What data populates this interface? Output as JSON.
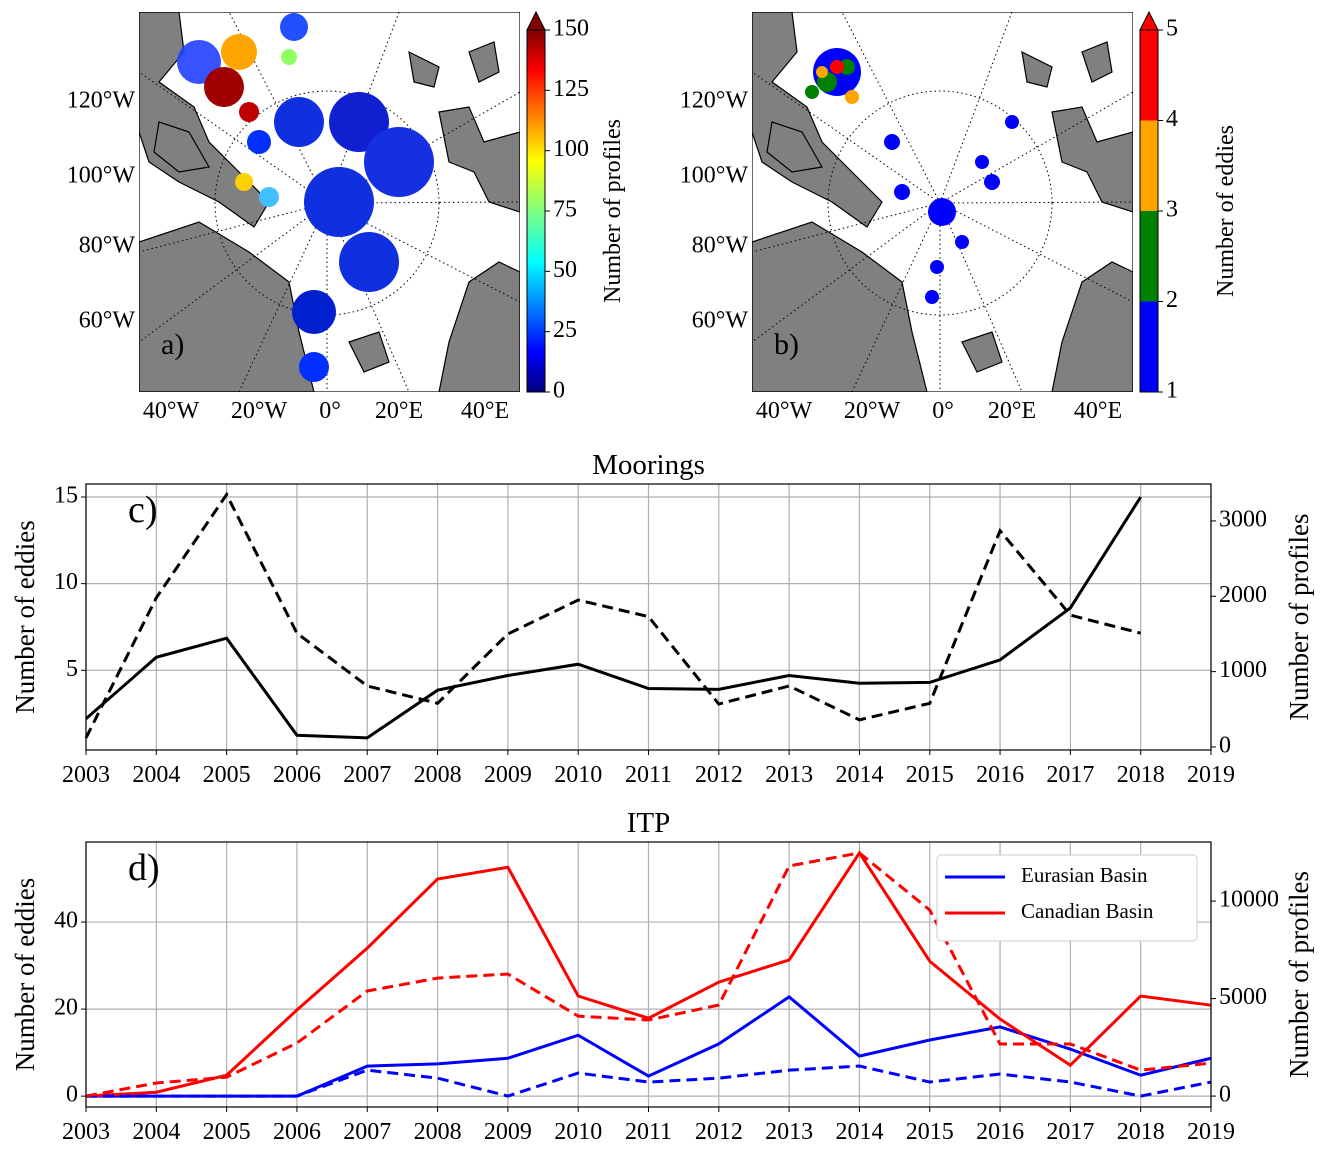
{
  "maps": [
    {
      "label": "a)",
      "lat_labels": [
        "120°W",
        "100°W",
        "80°W",
        "60°W"
      ],
      "lon_labels": [
        "40°W",
        "20°W",
        "0°",
        "20°E",
        "40°E"
      ],
      "colorbar": {
        "label": "Number of profiles",
        "lim": [
          0,
          150
        ],
        "ticks": [
          0,
          25,
          50,
          75,
          100,
          125,
          150
        ],
        "colormap": "jet",
        "extend": "max"
      }
    },
    {
      "label": "b)",
      "lat_labels": [
        "120°W",
        "100°W",
        "80°W",
        "60°W"
      ],
      "lon_labels": [
        "40°W",
        "20°W",
        "0°",
        "20°E",
        "40°E"
      ],
      "colorbar": {
        "label": "Number of eddies",
        "lim": [
          1,
          5
        ],
        "ticks": [
          1,
          2,
          3,
          4,
          5
        ],
        "colors": [
          "#0000ff",
          "#008000",
          "#ffa500",
          "#ff0000"
        ],
        "extend": "max"
      }
    }
  ],
  "chart_data": [
    {
      "type": "line",
      "title": "Moorings",
      "panel_label": "c)",
      "x": [
        2003,
        2004,
        2005,
        2006,
        2007,
        2008,
        2009,
        2010,
        2011,
        2012,
        2013,
        2014,
        2015,
        2016,
        2017,
        2018
      ],
      "xlim": [
        2003,
        2019
      ],
      "xticks": [
        2003,
        2004,
        2005,
        2006,
        2007,
        2008,
        2009,
        2010,
        2011,
        2012,
        2013,
        2014,
        2015,
        2016,
        2017,
        2018,
        2019
      ],
      "ylabel": "Number of eddies",
      "ylim": [
        0.4,
        15.75
      ],
      "yticks": [
        5,
        10,
        15
      ],
      "y2label": "Number of profiles",
      "y2lim": [
        -40,
        3490
      ],
      "y2ticks": [
        0,
        1000,
        2000,
        3000
      ],
      "grid": true,
      "series": [
        {
          "color": "#000000",
          "linestyle": "solid",
          "values": [
            2.2,
            5.75,
            6.85,
            1.25,
            1.1,
            3.85,
            4.7,
            5.35,
            3.95,
            3.9,
            4.7,
            4.25,
            4.3,
            5.6,
            8.6,
            15
          ]
        },
        {
          "color": "#000000",
          "linestyle": "dashed",
          "axis": "y2",
          "values": [
            120,
            1980,
            3350,
            1510,
            810,
            580,
            1500,
            1950,
            1730,
            570,
            810,
            360,
            580,
            2870,
            1750,
            1510
          ]
        }
      ]
    },
    {
      "type": "line",
      "title": "ITP",
      "panel_label": "d)",
      "x": [
        2003,
        2004,
        2005,
        2006,
        2007,
        2008,
        2009,
        2010,
        2011,
        2012,
        2013,
        2014,
        2015,
        2016,
        2017,
        2018,
        2019
      ],
      "xlim": [
        2003,
        2019
      ],
      "xticks": [
        2003,
        2004,
        2005,
        2006,
        2007,
        2008,
        2009,
        2010,
        2011,
        2012,
        2013,
        2014,
        2015,
        2016,
        2017,
        2018,
        2019
      ],
      "ylabel": "Number of eddies",
      "ylim": [
        -2.5,
        58.4
      ],
      "yticks": [
        0,
        20,
        40
      ],
      "y2label": "Number of profiles",
      "y2lim": [
        -560,
        13030
      ],
      "y2ticks": [
        0,
        5000,
        10000
      ],
      "grid": true,
      "legend": "upper right",
      "series": [
        {
          "name": "Eurasian Basin",
          "color": "#0000ff",
          "linestyle": "solid",
          "values": [
            0,
            0,
            0,
            0,
            6.9,
            7.4,
            8.7,
            14,
            4.6,
            12,
            22.8,
            9.2,
            12.9,
            15.9,
            10.8,
            4.8,
            8.7
          ]
        },
        {
          "name": "Canadian Basin",
          "color": "#ff0000",
          "linestyle": "solid",
          "values": [
            0,
            0.9,
            4.8,
            19.8,
            34,
            49.9,
            52.6,
            23,
            17.9,
            26.2,
            31.3,
            55.9,
            31,
            17.7,
            7.1,
            23,
            20.9
          ]
        },
        {
          "color": "#0000ff",
          "linestyle": "dashed",
          "axis": "y2",
          "values": [
            0,
            0,
            0,
            0,
            1330,
            920,
            0,
            1180,
            720,
            920,
            1330,
            1540,
            720,
            1130,
            720,
            0,
            720
          ]
        },
        {
          "color": "#ff0000",
          "linestyle": "dashed",
          "axis": "y2",
          "values": [
            0,
            670,
            970,
            2720,
            5390,
            6050,
            6260,
            4100,
            3900,
            4670,
            11800,
            12470,
            9540,
            2670,
            2670,
            1330,
            1690
          ]
        }
      ]
    }
  ]
}
